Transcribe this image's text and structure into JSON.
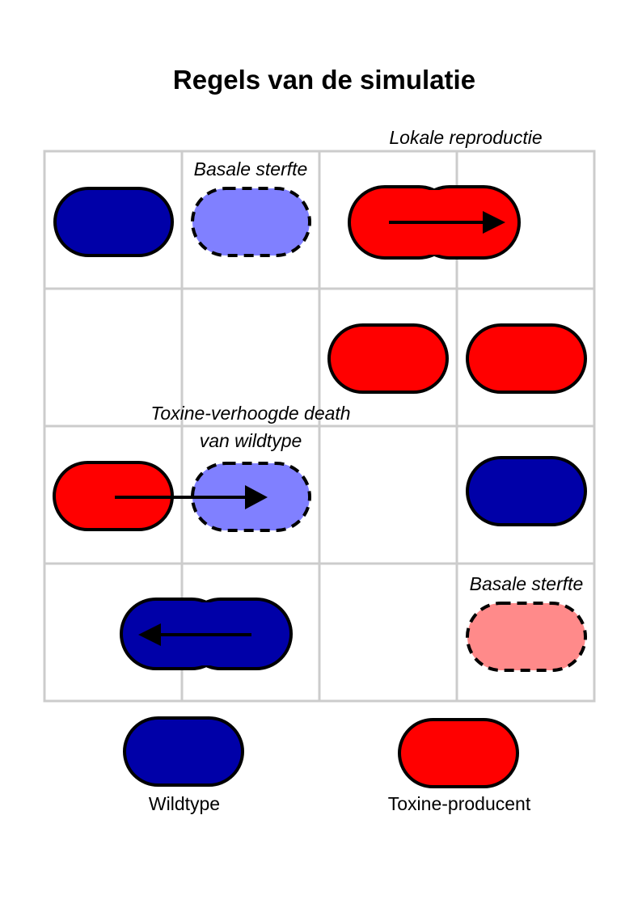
{
  "title": "Regels van de simulatie",
  "annotations": {
    "basal_death_top": "Basale sterfte",
    "local_reproduction": "Lokale reproductie",
    "toxin_death_line1": "Toxine-verhoogde death",
    "toxin_death_line2": "van wildtype",
    "basal_death_bottom": "Basale sterfte"
  },
  "legend": {
    "wildtype": "Wildtype",
    "toxin_producer": "Toxine-producent"
  },
  "colors": {
    "wildtype": "#0000a8",
    "wildtype_dying": "#8080ff",
    "toxin_producer": "#ff0000",
    "toxin_producer_dying": "#ff8a8a",
    "grid_line": "#cccccc",
    "outline": "#000000"
  },
  "grid": {
    "rows": 4,
    "cols": 4
  }
}
